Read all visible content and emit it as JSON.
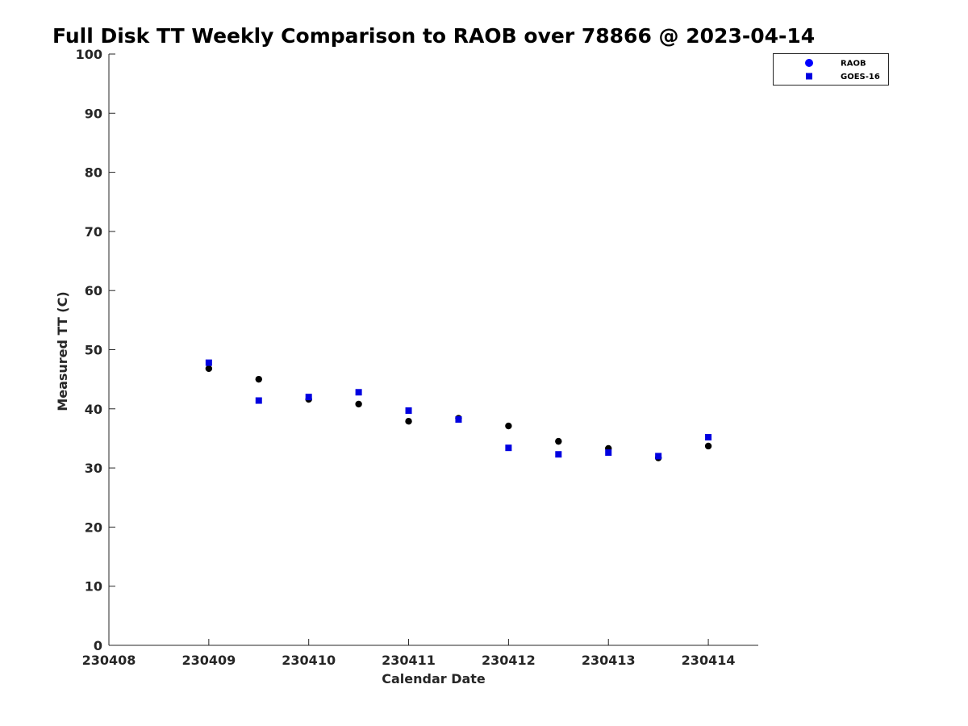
{
  "chart_data": {
    "type": "scatter",
    "title": "Full Disk TT Weekly Comparison to RAOB over 78866 @ 2023-04-14",
    "xlabel": "Calendar Date",
    "ylabel": "Measured TT (C)",
    "xlim": [
      230408,
      230414.5
    ],
    "ylim": [
      0,
      100
    ],
    "xticks": [
      230408,
      230409,
      230410,
      230411,
      230412,
      230413,
      230414
    ],
    "yticks": [
      0,
      10,
      20,
      30,
      40,
      50,
      60,
      70,
      80,
      90,
      100
    ],
    "grid": false,
    "legend_position": "top-right",
    "series": [
      {
        "name": "RAOB",
        "marker": "circle",
        "color": "#000000",
        "legend_color": "#0000ff",
        "x": [
          230409,
          230409.5,
          230410,
          230410.5,
          230411,
          230411.5,
          230412,
          230412.5,
          230413,
          230413.5,
          230414
        ],
        "y": [
          46.8,
          45.0,
          41.6,
          40.8,
          37.9,
          38.4,
          37.1,
          34.5,
          33.3,
          31.7,
          33.7
        ]
      },
      {
        "name": "GOES-16",
        "marker": "square",
        "color": "#0000e0",
        "legend_color": "#0000e0",
        "x": [
          230409,
          230409.5,
          230410,
          230410.5,
          230411,
          230411.5,
          230412,
          230412.5,
          230413,
          230413.5,
          230414
        ],
        "y": [
          47.8,
          41.4,
          42.0,
          42.8,
          39.7,
          38.2,
          33.4,
          32.3,
          32.6,
          32.0,
          35.2
        ]
      }
    ]
  }
}
